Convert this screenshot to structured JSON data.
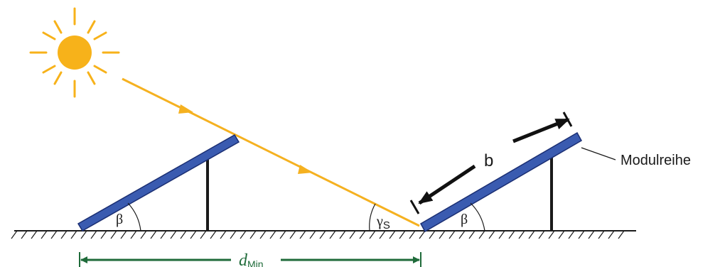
{
  "labels": {
    "module_row": "Modulreihe",
    "module_length": "b",
    "tilt_angle_left": "β",
    "tilt_angle_right": "β",
    "sun_elevation_symbol": "γ",
    "sun_elevation_subscript": "S",
    "distance_symbol": "d",
    "distance_subscript": "Min"
  },
  "colors": {
    "panel_fill": "#3a5bb0",
    "panel_stroke": "#1b2f73",
    "sun": "#f7b21a",
    "ray": "#f5b120",
    "ground": "#1a1a1a",
    "dimension": "#1f6b3a",
    "arrow_black": "#111111"
  },
  "icons": {
    "sun": "sun-icon"
  }
}
